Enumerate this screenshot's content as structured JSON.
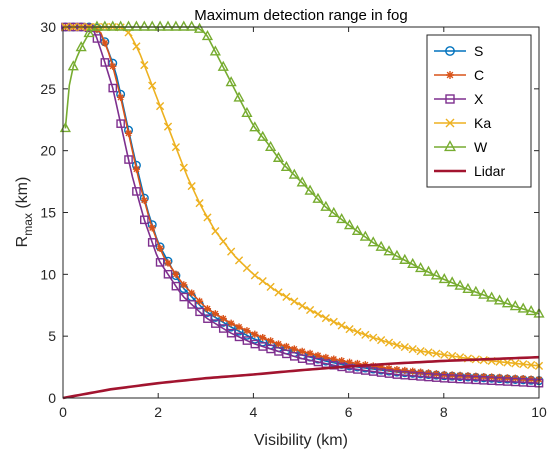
{
  "chart_data": {
    "type": "line",
    "title": "Maximum detection range in fog",
    "xlabel": "Visibility (km)",
    "ylabel_main": "R",
    "ylabel_sub": "max",
    "ylabel_unit": " (km)",
    "xlim": [
      0,
      10
    ],
    "ylim": [
      0,
      30
    ],
    "x_ticks": [
      0,
      2,
      4,
      6,
      8,
      10
    ],
    "y_ticks": [
      0,
      5,
      10,
      15,
      20,
      25,
      30
    ],
    "grid": false,
    "legend_position": "top-right",
    "series": [
      {
        "name": "S",
        "color": "#0072BD",
        "marker": "circle",
        "points": [
          [
            0.05,
            30
          ],
          [
            0.33,
            30
          ],
          [
            0.5,
            30
          ],
          [
            0.7,
            30
          ],
          [
            0.88,
            28.8
          ],
          [
            1.1,
            26.5
          ],
          [
            1.3,
            23
          ],
          [
            1.5,
            19.5
          ],
          [
            1.75,
            15.5
          ],
          [
            2.0,
            12.5
          ],
          [
            2.5,
            9.0
          ],
          [
            3.0,
            7.0
          ],
          [
            3.5,
            5.8
          ],
          [
            4.0,
            4.8
          ],
          [
            4.5,
            4.1
          ],
          [
            5.0,
            3.5
          ],
          [
            5.5,
            3.0
          ],
          [
            6.0,
            2.6
          ],
          [
            7.0,
            2.1
          ],
          [
            8.0,
            1.8
          ],
          [
            9.0,
            1.6
          ],
          [
            10.0,
            1.4
          ]
        ]
      },
      {
        "name": "C",
        "color": "#D95319",
        "marker": "asterisk",
        "points": [
          [
            0.05,
            30
          ],
          [
            0.33,
            30
          ],
          [
            0.5,
            30
          ],
          [
            0.65,
            30
          ],
          [
            0.8,
            29.5
          ],
          [
            1.0,
            27.5
          ],
          [
            1.2,
            24.5
          ],
          [
            1.4,
            21
          ],
          [
            1.6,
            17.5
          ],
          [
            1.85,
            14
          ],
          [
            2.1,
            11.5
          ],
          [
            2.5,
            9.3
          ],
          [
            3.0,
            7.3
          ],
          [
            3.5,
            6.1
          ],
          [
            4.0,
            5.2
          ],
          [
            4.5,
            4.4
          ],
          [
            5.0,
            3.8
          ],
          [
            5.5,
            3.3
          ],
          [
            6.0,
            2.9
          ],
          [
            7.0,
            2.3
          ],
          [
            8.0,
            1.9
          ],
          [
            9.0,
            1.7
          ],
          [
            10.0,
            1.5
          ]
        ]
      },
      {
        "name": "X",
        "color": "#7E2F8E",
        "marker": "square",
        "points": [
          [
            0.05,
            30
          ],
          [
            0.33,
            30
          ],
          [
            0.5,
            30
          ],
          [
            0.65,
            29.8
          ],
          [
            0.85,
            27.5
          ],
          [
            1.05,
            25
          ],
          [
            1.25,
            21.5
          ],
          [
            1.45,
            18
          ],
          [
            1.7,
            14.5
          ],
          [
            2.0,
            11.2
          ],
          [
            2.5,
            8.3
          ],
          [
            3.0,
            6.5
          ],
          [
            3.5,
            5.3
          ],
          [
            4.0,
            4.4
          ],
          [
            4.5,
            3.8
          ],
          [
            5.0,
            3.2
          ],
          [
            5.5,
            2.8
          ],
          [
            6.0,
            2.4
          ],
          [
            7.0,
            1.9
          ],
          [
            8.0,
            1.6
          ],
          [
            9.0,
            1.4
          ],
          [
            10.0,
            1.2
          ]
        ]
      },
      {
        "name": "Ka",
        "color": "#EDB120",
        "marker": "cross",
        "points": [
          [
            0.05,
            30
          ],
          [
            0.33,
            30
          ],
          [
            0.8,
            30
          ],
          [
            1.2,
            30
          ],
          [
            1.4,
            29.5
          ],
          [
            1.6,
            28
          ],
          [
            1.85,
            25.5
          ],
          [
            2.1,
            23
          ],
          [
            2.35,
            20.5
          ],
          [
            2.6,
            18
          ],
          [
            2.9,
            15.5
          ],
          [
            3.2,
            13.5
          ],
          [
            3.6,
            11.5
          ],
          [
            4.0,
            10
          ],
          [
            4.5,
            8.6
          ],
          [
            5.0,
            7.5
          ],
          [
            5.5,
            6.5
          ],
          [
            6.0,
            5.6
          ],
          [
            6.5,
            4.9
          ],
          [
            7.0,
            4.3
          ],
          [
            7.5,
            3.8
          ],
          [
            8.0,
            3.5
          ],
          [
            8.5,
            3.2
          ],
          [
            9.0,
            3.0
          ],
          [
            9.5,
            2.8
          ],
          [
            10.0,
            2.6
          ]
        ]
      },
      {
        "name": "W",
        "color": "#77AC30",
        "marker": "triangle",
        "points": [
          [
            0.05,
            21.8
          ],
          [
            0.15,
            26
          ],
          [
            0.25,
            27.2
          ],
          [
            0.4,
            28.5
          ],
          [
            0.55,
            29.5
          ],
          [
            0.7,
            30
          ],
          [
            1.0,
            30
          ],
          [
            1.5,
            30
          ],
          [
            2.0,
            30
          ],
          [
            2.5,
            30
          ],
          [
            2.8,
            30
          ],
          [
            3.0,
            29.5
          ],
          [
            3.2,
            28
          ],
          [
            3.4,
            26.5
          ],
          [
            3.6,
            25
          ],
          [
            3.8,
            23.5
          ],
          [
            4.0,
            22
          ],
          [
            4.3,
            20.6
          ],
          [
            4.6,
            19
          ],
          [
            5.0,
            17.5
          ],
          [
            5.5,
            15.5
          ],
          [
            6.0,
            14
          ],
          [
            6.5,
            12.6
          ],
          [
            7.0,
            11.5
          ],
          [
            7.5,
            10.5
          ],
          [
            8.0,
            9.6
          ],
          [
            8.5,
            8.8
          ],
          [
            9.0,
            8.1
          ],
          [
            9.5,
            7.4
          ],
          [
            10.0,
            6.8
          ]
        ]
      },
      {
        "name": "Lidar",
        "color": "#A2142F",
        "marker": "none",
        "points": [
          [
            0.0,
            0.0
          ],
          [
            0.5,
            0.35
          ],
          [
            1.0,
            0.7
          ],
          [
            1.5,
            0.95
          ],
          [
            2.0,
            1.2
          ],
          [
            3.0,
            1.6
          ],
          [
            4.0,
            1.9
          ],
          [
            5.0,
            2.25
          ],
          [
            6.0,
            2.55
          ],
          [
            7.0,
            2.8
          ],
          [
            8.0,
            3.0
          ],
          [
            9.0,
            3.15
          ],
          [
            10.0,
            3.3
          ]
        ]
      }
    ]
  }
}
